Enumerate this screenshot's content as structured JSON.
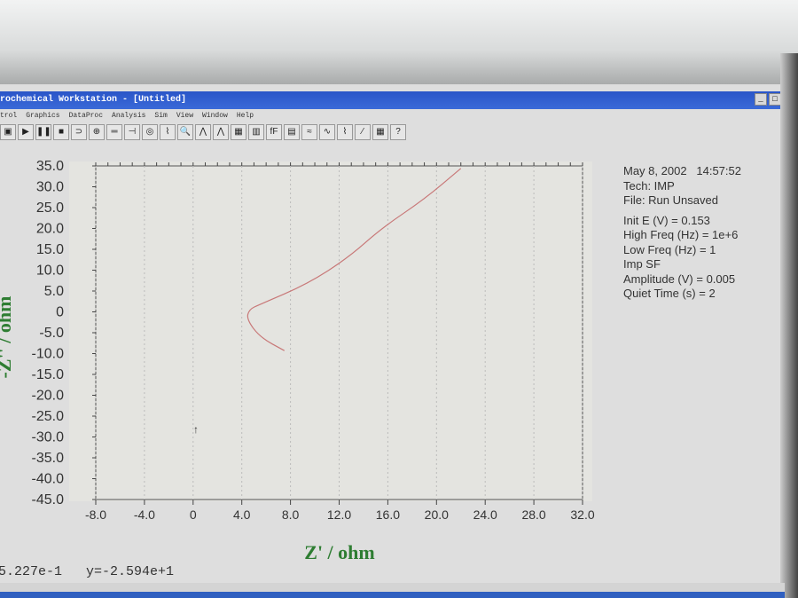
{
  "window": {
    "title": "rochemical Workstation - [Untitled]",
    "buttons": [
      "_",
      "□"
    ]
  },
  "menu": [
    "trol",
    "Graphics",
    "DataProc",
    "Analysis",
    "Sim",
    "View",
    "Window",
    "Help"
  ],
  "toolbar": [
    "▣",
    "▶",
    "❚❚",
    "■",
    "⊃",
    "⊕",
    "═",
    "⊣",
    "◎",
    "⌇",
    "🔍",
    "⋀",
    "⋀",
    "▦",
    "▥",
    "fF",
    "▤",
    "≈",
    "∿",
    "⌇",
    "⁄",
    "▦",
    "?"
  ],
  "info": [
    "May 8, 2002   14:57:52",
    "Tech: IMP",
    "File: Run Unsaved",
    "",
    "Init E (V) = 0.153",
    "High Freq (Hz) = 1e+6",
    "Low Freq (Hz) = 1",
    "Imp SF",
    "Amplitude (V) = 0.005",
    "Quiet Time (s) = 2"
  ],
  "cursor_readout": "5.227e-1   y=-2.594e+1",
  "chart_data": {
    "type": "line",
    "xlabel": "Z' / ohm",
    "ylabel": "-Z'' / ohm",
    "xlim": [
      -8,
      32
    ],
    "ylim": [
      -45,
      35
    ],
    "xticks": [
      "-8.0",
      "-4.0",
      "0",
      "4.0",
      "8.0",
      "12.0",
      "16.0",
      "20.0",
      "24.0",
      "28.0",
      "32.0"
    ],
    "yticks": [
      "35.0",
      "30.0",
      "25.0",
      "20.0",
      "15.0",
      "10.0",
      "5.0",
      "0",
      "-5.0",
      "-10.0",
      "-15.0",
      "-20.0",
      "-25.0",
      "-30.0",
      "-35.0",
      "-40.0",
      "-45.0"
    ],
    "grid": true,
    "colors": {
      "line": "#c87878",
      "axis_label": "#2e7d32",
      "plot_bg": "#e4e4e0"
    },
    "series": [
      {
        "x": [
          7.5,
          5.5,
          4.4,
          4.6,
          5.5,
          9.4,
          12.8,
          15.5,
          19.0,
          22.0
        ],
        "y": [
          -9.3,
          -6.1,
          -1.8,
          0.6,
          1.8,
          6.7,
          13.1,
          20.1,
          27.0,
          34.4
        ]
      }
    ]
  }
}
